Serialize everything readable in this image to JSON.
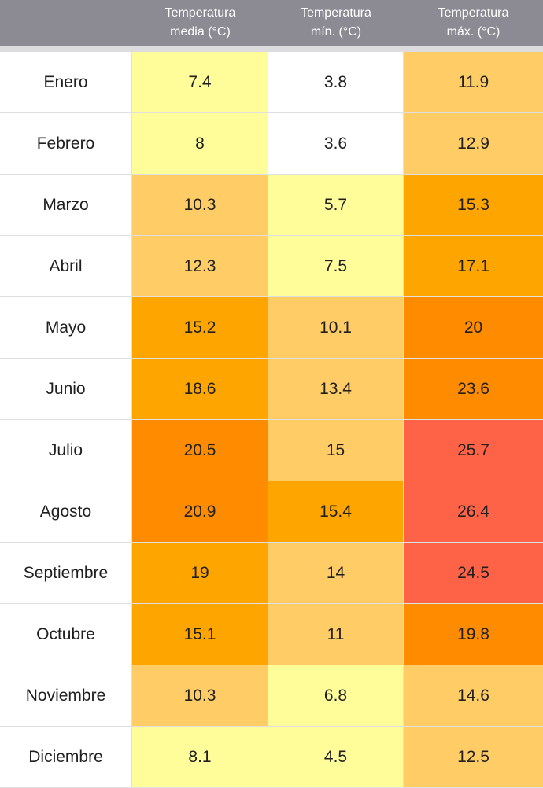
{
  "header": {
    "month_label": "",
    "columns": [
      "Temperatura\nmedia (°C)",
      "Temperatura\nmín. (°C)",
      "Temperatura\nmáx. (°C)"
    ]
  },
  "colors": {
    "white": "#ffffff",
    "pale_yellow": "#fffd99",
    "light_orange": "#ffcc66",
    "orange": "#ffa500",
    "dark_orange": "#ff8c00",
    "red_orange": "#ff6347"
  },
  "rows": [
    {
      "month": "Enero",
      "media": "7.4",
      "min": "3.8",
      "max": "11.9",
      "c": [
        "pale_yellow",
        "white",
        "light_orange"
      ]
    },
    {
      "month": "Febrero",
      "media": "8",
      "min": "3.6",
      "max": "12.9",
      "c": [
        "pale_yellow",
        "white",
        "light_orange"
      ]
    },
    {
      "month": "Marzo",
      "media": "10.3",
      "min": "5.7",
      "max": "15.3",
      "c": [
        "light_orange",
        "pale_yellow",
        "orange"
      ]
    },
    {
      "month": "Abril",
      "media": "12.3",
      "min": "7.5",
      "max": "17.1",
      "c": [
        "light_orange",
        "pale_yellow",
        "orange"
      ]
    },
    {
      "month": "Mayo",
      "media": "15.2",
      "min": "10.1",
      "max": "20",
      "c": [
        "orange",
        "light_orange",
        "dark_orange"
      ]
    },
    {
      "month": "Junio",
      "media": "18.6",
      "min": "13.4",
      "max": "23.6",
      "c": [
        "orange",
        "light_orange",
        "dark_orange"
      ]
    },
    {
      "month": "Julio",
      "media": "20.5",
      "min": "15",
      "max": "25.7",
      "c": [
        "dark_orange",
        "light_orange",
        "red_orange"
      ]
    },
    {
      "month": "Agosto",
      "media": "20.9",
      "min": "15.4",
      "max": "26.4",
      "c": [
        "dark_orange",
        "orange",
        "red_orange"
      ]
    },
    {
      "month": "Septiembre",
      "media": "19",
      "min": "14",
      "max": "24.5",
      "c": [
        "orange",
        "light_orange",
        "red_orange"
      ]
    },
    {
      "month": "Octubre",
      "media": "15.1",
      "min": "11",
      "max": "19.8",
      "c": [
        "orange",
        "light_orange",
        "dark_orange"
      ]
    },
    {
      "month": "Noviembre",
      "media": "10.3",
      "min": "6.8",
      "max": "14.6",
      "c": [
        "light_orange",
        "pale_yellow",
        "light_orange"
      ]
    },
    {
      "month": "Diciembre",
      "media": "8.1",
      "min": "4.5",
      "max": "12.5",
      "c": [
        "pale_yellow",
        "pale_yellow",
        "light_orange"
      ]
    }
  ]
}
